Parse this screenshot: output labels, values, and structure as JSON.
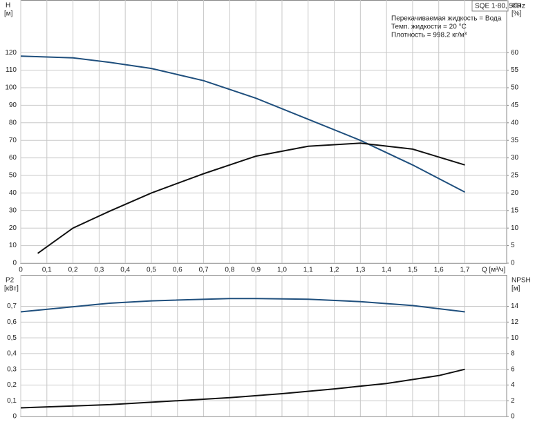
{
  "chart_data": [
    {
      "type": "line",
      "model": "SQE 1-80, 50Hz",
      "annotations": [
        "Перекачиваемая жидкость = Вода",
        "Темп. жидкости = 20 °C",
        "Плотность = 998.2 кг/м³"
      ],
      "ylabel": "H",
      "yunit": "[м]",
      "y2label": "eta",
      "y2unit": "[%]",
      "xlabel": "Q [м³/ч]",
      "xlim": [
        0,
        1.86
      ],
      "ylim": [
        0,
        150
      ],
      "y2lim": [
        0,
        75
      ],
      "grid": true,
      "xticks": [
        0,
        {
          "value": 0.1,
          "label": "0,1"
        },
        {
          "value": 0.2,
          "label": "0,2"
        },
        {
          "value": 0.3,
          "label": "0,3"
        },
        {
          "value": 0.4,
          "label": "0,4"
        },
        {
          "value": 0.5,
          "label": "0,5"
        },
        {
          "value": 0.6,
          "label": "0,6"
        },
        {
          "value": 0.7,
          "label": "0,7"
        },
        {
          "value": 0.8,
          "label": "0,8"
        },
        {
          "value": 0.9,
          "label": "0,9"
        },
        {
          "value": 1.0,
          "label": "1,0"
        },
        {
          "value": 1.1,
          "label": "1,1"
        },
        {
          "value": 1.2,
          "label": "1,2"
        },
        {
          "value": 1.3,
          "label": "1,3"
        },
        {
          "value": 1.4,
          "label": "1,4"
        },
        {
          "value": 1.5,
          "label": "1,5"
        },
        {
          "value": 1.6,
          "label": "1,6"
        },
        {
          "value": 1.7,
          "label": "1,7"
        }
      ],
      "yticks": [
        0,
        10,
        20,
        30,
        40,
        50,
        60,
        70,
        80,
        90,
        100,
        110,
        120
      ],
      "y2ticks": [
        0,
        5,
        10,
        15,
        20,
        25,
        30,
        35,
        40,
        45,
        50,
        55,
        60
      ],
      "series": [
        {
          "color": "#1f4f7d",
          "axis": "y",
          "x": [
            0,
            0.2,
            0.34,
            0.5,
            0.7,
            0.9,
            1.1,
            1.3,
            1.5,
            1.7
          ],
          "values": [
            118,
            117,
            114.5,
            111,
            104,
            94,
            82,
            70,
            56,
            40.5
          ]
        },
        {
          "color": "#111111",
          "axis": "y2",
          "x": [
            0.065,
            0.2,
            0.34,
            0.5,
            0.7,
            0.9,
            1.1,
            1.3,
            1.5,
            1.7
          ],
          "values": [
            2.8,
            10,
            14.8,
            20,
            25.5,
            30.5,
            33.3,
            34.2,
            32.5,
            28
          ]
        }
      ]
    },
    {
      "type": "line",
      "ylabel": "P2",
      "yunit": "[кВт]",
      "y2label": "NPSH",
      "y2unit": "[м]",
      "xlim": [
        0,
        1.86
      ],
      "ylim": [
        0,
        0.9
      ],
      "y2lim": [
        0,
        18
      ],
      "grid": true,
      "xticks": [
        0,
        0.1,
        0.2,
        0.3,
        0.4,
        0.5,
        0.6,
        0.7,
        0.8,
        0.9,
        1.0,
        1.1,
        1.2,
        1.3,
        1.4,
        1.5,
        1.6,
        1.7
      ],
      "yticks": [
        0,
        {
          "value": 0.1,
          "label": "0,1"
        },
        {
          "value": 0.2,
          "label": "0,2"
        },
        {
          "value": 0.3,
          "label": "0,3"
        },
        {
          "value": 0.4,
          "label": "0,4"
        },
        {
          "value": 0.5,
          "label": "0,5"
        },
        {
          "value": 0.6,
          "label": "0,6"
        },
        {
          "value": 0.7,
          "label": "0,7"
        }
      ],
      "y2ticks": [
        0,
        2,
        4,
        6,
        8,
        10,
        12,
        14
      ],
      "series": [
        {
          "color": "#1f4f7d",
          "axis": "y",
          "x": [
            0,
            0.34,
            0.5,
            0.8,
            0.9,
            1.1,
            1.3,
            1.5,
            1.7
          ],
          "values": [
            0.665,
            0.72,
            0.735,
            0.75,
            0.75,
            0.745,
            0.73,
            0.705,
            0.665
          ]
        },
        {
          "color": "#111111",
          "axis": "y2",
          "x": [
            0,
            0.34,
            0.6,
            0.8,
            1.0,
            1.2,
            1.4,
            1.6,
            1.7
          ],
          "values": [
            1.1,
            1.5,
            2.0,
            2.4,
            2.9,
            3.5,
            4.2,
            5.2,
            6.0
          ]
        }
      ]
    }
  ]
}
